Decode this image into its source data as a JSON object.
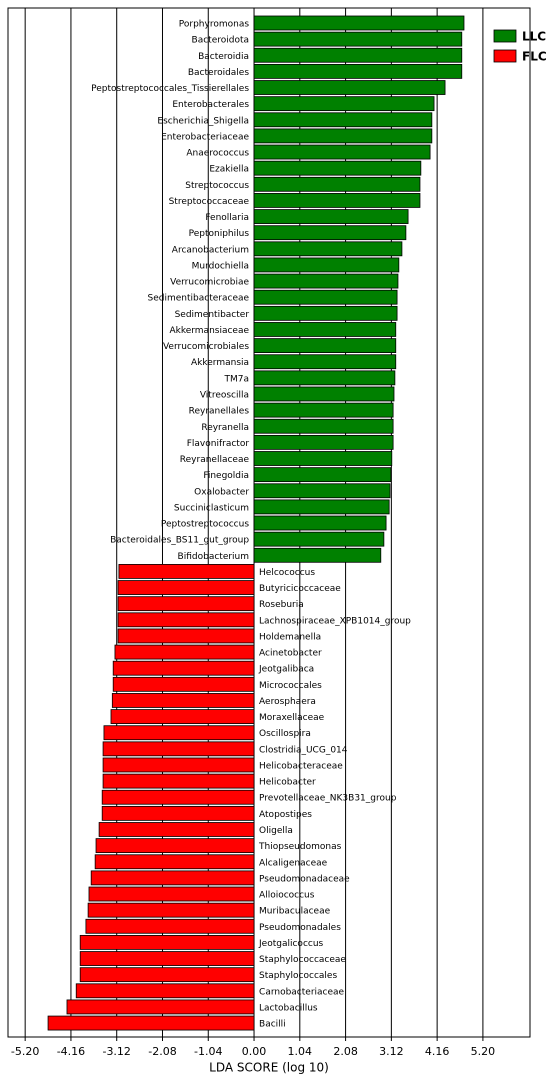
{
  "chart_data": {
    "type": "bar",
    "orientation": "horizontal",
    "x_label": "LDA SCORE (log 10)",
    "categories": [
      "Porphyromonas",
      "Bacteroidota",
      "Bacteroidia",
      "Bacteroidales",
      "Peptostreptococcales_Tissierellales",
      "Enterobacterales",
      "Escherichia_Shigella",
      "Enterobacteriaceae",
      "Anaerococcus",
      "Ezakiella",
      "Streptococcus",
      "Streptococcaceae",
      "Fenollaria",
      "Peptoniphilus",
      "Arcanobacterium",
      "Murdochiella",
      "Verrucomicrobiae",
      "Sedimentibacteraceae",
      "Sedimentibacter",
      "Akkermansiaceae",
      "Verrucomicrobiales",
      "Akkermansia",
      "TM7a",
      "Vitreoscilla",
      "Reyranellales",
      "Reyranella",
      "Flavonifractor",
      "Reyranellaceae",
      "Finegoldia",
      "Oxalobacter",
      "Succiniclasticum",
      "Peptostreptococcus",
      "Bacteroidales_BS11_gut_group",
      "Bifidobacterium",
      "Helcococcus",
      "Butyricicoccaceae",
      "Roseburia",
      "Lachnospiraceae_XPB1014_group",
      "Holdemanella",
      "Acinetobacter",
      "Jeotgalibaca",
      "Micrococcales",
      "Aerosphaera",
      "Moraxellaceae",
      "Oscillospira",
      "Clostridia_UCG_014",
      "Helicobacteraceae",
      "Helicobacter",
      "Prevotellaceae_NK3B31_group",
      "Atopostipes",
      "Oligella",
      "Thiopseudomonas",
      "Alcaligenaceae",
      "Pseudomonadaceae",
      "Alloiococcus",
      "Muribaculaceae",
      "Pseudomonadales",
      "Jeotgalicoccus",
      "Staphylococcaceae",
      "Staphylococcales",
      "Carnobacteriaceae",
      "Lactobacillus",
      "Bacilli"
    ],
    "series": [
      {
        "name": "LLC",
        "color": "#008000",
        "values": [
          4.77,
          4.72,
          4.72,
          4.72,
          4.34,
          4.09,
          4.04,
          4.04,
          4.0,
          3.79,
          3.77,
          3.77,
          3.5,
          3.45,
          3.36,
          3.29,
          3.27,
          3.25,
          3.25,
          3.22,
          3.22,
          3.22,
          3.2,
          3.18,
          3.16,
          3.16,
          3.16,
          3.13,
          3.11,
          3.09,
          3.07,
          3.0,
          2.95,
          2.88,
          null,
          null,
          null,
          null,
          null,
          null,
          null,
          null,
          null,
          null,
          null,
          null,
          null,
          null,
          null,
          null,
          null,
          null,
          null,
          null,
          null,
          null,
          null,
          null,
          null,
          null,
          null,
          null,
          null
        ]
      },
      {
        "name": "FLC",
        "color": "#ff0000",
        "values": [
          null,
          null,
          null,
          null,
          null,
          null,
          null,
          null,
          null,
          null,
          null,
          null,
          null,
          null,
          null,
          null,
          null,
          null,
          null,
          null,
          null,
          null,
          null,
          null,
          null,
          null,
          null,
          null,
          null,
          null,
          null,
          null,
          null,
          null,
          -3.07,
          -3.09,
          -3.09,
          -3.09,
          -3.09,
          -3.16,
          -3.2,
          -3.2,
          -3.22,
          -3.25,
          -3.41,
          -3.43,
          -3.43,
          -3.43,
          -3.45,
          -3.45,
          -3.52,
          -3.59,
          -3.61,
          -3.7,
          -3.75,
          -3.77,
          -3.82,
          -3.95,
          -3.95,
          -3.95,
          -4.04,
          -4.25,
          -4.68
        ]
      }
    ],
    "xlim": [
      -5.59,
      6.27
    ],
    "xticks": [
      {
        "value": -5.2,
        "label": "-5.20"
      },
      {
        "value": -4.16,
        "label": "-4.16"
      },
      {
        "value": -3.12,
        "label": "-3.12"
      },
      {
        "value": -2.08,
        "label": "-2.08"
      },
      {
        "value": -1.04,
        "label": "-1.04"
      },
      {
        "value": 0,
        "label": "0.00"
      },
      {
        "value": 1.04,
        "label": "1.04"
      },
      {
        "value": 2.08,
        "label": "2.08"
      },
      {
        "value": 3.12,
        "label": "3.12"
      },
      {
        "value": 4.16,
        "label": "4.16"
      },
      {
        "value": 5.2,
        "label": "5.20"
      }
    ],
    "grid": true,
    "legend": "upper right"
  }
}
